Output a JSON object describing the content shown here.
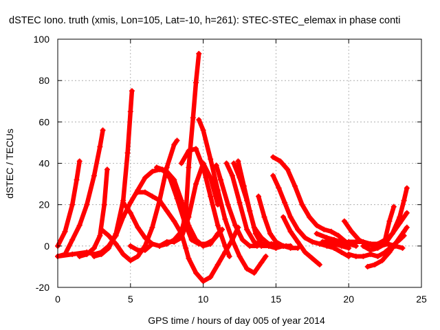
{
  "chart_data": {
    "type": "scatter",
    "title": "dSTEC Iono. truth (xmis, Lon=105, Lat=-10, h=261): STEC-STEC_elemax in phase conti",
    "xlabel": "GPS time / hours of day 005 of year 2014",
    "ylabel": "dSTEC  / TECUs",
    "xlim": [
      0,
      25
    ],
    "ylim": [
      -20,
      100
    ],
    "x_ticks": [
      0,
      5,
      10,
      15,
      20,
      25
    ],
    "y_ticks": [
      -20,
      0,
      20,
      40,
      60,
      80,
      100
    ],
    "grid": true,
    "marker": "+",
    "series_color": "#ff0000",
    "series": [
      {
        "points": [
          [
            0.0,
            0
          ],
          [
            0.5,
            7
          ],
          [
            1.0,
            20
          ],
          [
            1.3,
            32
          ],
          [
            1.5,
            41
          ]
        ]
      },
      {
        "points": [
          [
            0.0,
            -5
          ],
          [
            0.5,
            -4
          ],
          [
            1.0,
            3
          ],
          [
            1.5,
            10
          ],
          [
            2.0,
            20
          ],
          [
            2.5,
            34
          ],
          [
            2.9,
            48
          ],
          [
            3.1,
            56
          ]
        ]
      },
      {
        "points": [
          [
            1.5,
            -5
          ],
          [
            2.0,
            -4
          ],
          [
            2.5,
            -1
          ],
          [
            2.9,
            5
          ],
          [
            3.2,
            20
          ],
          [
            3.4,
            37
          ]
        ]
      },
      {
        "points": [
          [
            2.5,
            -5
          ],
          [
            3.0,
            -4
          ],
          [
            3.5,
            -1
          ],
          [
            4.0,
            6
          ],
          [
            4.5,
            22
          ],
          [
            4.8,
            45
          ],
          [
            5.0,
            65
          ],
          [
            5.1,
            75
          ]
        ]
      },
      {
        "points": [
          [
            0.0,
            -5
          ],
          [
            1.0,
            -4
          ],
          [
            2.0,
            -3
          ],
          [
            2.5,
            -4
          ],
          [
            3.0,
            -3
          ],
          [
            3.5,
            0
          ],
          [
            4.0,
            5
          ],
          [
            4.5,
            14
          ],
          [
            5.0,
            21
          ],
          [
            5.5,
            27
          ],
          [
            6.0,
            33
          ],
          [
            6.5,
            36
          ],
          [
            7.0,
            37
          ],
          [
            7.5,
            36
          ],
          [
            8.0,
            32
          ],
          [
            8.5,
            22
          ],
          [
            9.0,
            10
          ],
          [
            9.5,
            3
          ],
          [
            10.0,
            0
          ],
          [
            10.5,
            1
          ],
          [
            11.0,
            6
          ],
          [
            11.3,
            8
          ]
        ]
      },
      {
        "points": [
          [
            3.0,
            8
          ],
          [
            3.5,
            5
          ],
          [
            4.0,
            1
          ],
          [
            4.5,
            -4
          ],
          [
            5.0,
            -7
          ],
          [
            5.5,
            -5
          ],
          [
            6.0,
            0
          ],
          [
            6.5,
            9
          ],
          [
            7.0,
            22
          ],
          [
            7.5,
            38
          ],
          [
            8.0,
            49
          ],
          [
            8.2,
            51
          ]
        ]
      },
      {
        "points": [
          [
            4.5,
            21
          ],
          [
            5.0,
            16
          ],
          [
            5.5,
            9
          ],
          [
            6.0,
            4
          ],
          [
            6.5,
            1
          ],
          [
            7.0,
            0
          ],
          [
            7.5,
            1
          ],
          [
            8.0,
            3
          ],
          [
            8.5,
            7
          ],
          [
            8.8,
            15
          ],
          [
            9.0,
            38
          ],
          [
            9.3,
            62
          ],
          [
            9.5,
            79
          ],
          [
            9.7,
            93
          ]
        ]
      },
      {
        "points": [
          [
            5.5,
            26
          ],
          [
            6.0,
            26
          ],
          [
            6.5,
            24
          ],
          [
            7.0,
            22
          ],
          [
            7.5,
            17
          ],
          [
            8.0,
            12
          ],
          [
            8.5,
            6
          ],
          [
            8.8,
            -1
          ],
          [
            9.0,
            -6
          ],
          [
            9.5,
            -13
          ],
          [
            10.0,
            -17
          ],
          [
            10.5,
            -15
          ],
          [
            11.0,
            -9
          ],
          [
            11.5,
            -3
          ],
          [
            12.0,
            3
          ],
          [
            12.4,
            9
          ]
        ]
      },
      {
        "points": [
          [
            6.8,
            38
          ],
          [
            7.2,
            37
          ],
          [
            7.7,
            33
          ],
          [
            8.2,
            23
          ],
          [
            8.7,
            12
          ],
          [
            9.2,
            3
          ],
          [
            9.7,
            1
          ],
          [
            10.2,
            1
          ],
          [
            10.7,
            3
          ],
          [
            11.2,
            7
          ]
        ]
      },
      {
        "points": [
          [
            5.0,
            0
          ],
          [
            5.5,
            -2
          ],
          [
            6.0,
            -2
          ],
          [
            6.5,
            1
          ],
          [
            7.0,
            0
          ],
          [
            7.5,
            2
          ],
          [
            8.0,
            2
          ],
          [
            8.5,
            4
          ],
          [
            9.0,
            14
          ],
          [
            9.5,
            30
          ],
          [
            10.0,
            40
          ],
          [
            10.5,
            33
          ],
          [
            11.0,
            20
          ]
        ]
      },
      {
        "points": [
          [
            8.5,
            40
          ],
          [
            9.0,
            46
          ],
          [
            9.5,
            47
          ],
          [
            10.0,
            38
          ],
          [
            10.5,
            24
          ],
          [
            11.0,
            10
          ],
          [
            11.5,
            0
          ],
          [
            11.8,
            -5
          ]
        ]
      },
      {
        "points": [
          [
            9.7,
            61
          ],
          [
            10.0,
            56
          ],
          [
            10.5,
            42
          ],
          [
            11.0,
            27
          ],
          [
            11.5,
            13
          ],
          [
            12.0,
            3
          ],
          [
            12.5,
            -5
          ],
          [
            13.0,
            -11
          ],
          [
            13.5,
            -13
          ],
          [
            14.0,
            -8
          ],
          [
            14.3,
            -5
          ]
        ]
      },
      {
        "points": [
          [
            10.9,
            39
          ],
          [
            11.2,
            32
          ],
          [
            11.7,
            20
          ],
          [
            12.2,
            10
          ],
          [
            12.7,
            3
          ],
          [
            13.2,
            0
          ],
          [
            13.7,
            0
          ],
          [
            14.2,
            1
          ],
          [
            14.7,
            1
          ],
          [
            15.2,
            0
          ],
          [
            15.7,
            0
          ]
        ]
      },
      {
        "points": [
          [
            11.6,
            40
          ],
          [
            12.0,
            34
          ],
          [
            12.5,
            21
          ],
          [
            13.0,
            8
          ],
          [
            13.5,
            2
          ],
          [
            14.0,
            0
          ],
          [
            14.5,
            0
          ],
          [
            15.0,
            -1
          ],
          [
            15.5,
            0
          ],
          [
            16.0,
            0
          ]
        ]
      },
      {
        "points": [
          [
            12.1,
            40
          ],
          [
            12.5,
            33
          ],
          [
            13.0,
            22
          ],
          [
            13.5,
            9
          ],
          [
            14.0,
            4
          ],
          [
            14.5,
            1
          ],
          [
            15.0,
            0
          ],
          [
            15.5,
            0
          ]
        ]
      },
      {
        "points": [
          [
            12.4,
            41
          ],
          [
            12.8,
            29
          ],
          [
            13.2,
            17
          ],
          [
            13.6,
            6
          ],
          [
            14.0,
            1
          ],
          [
            14.5,
            0
          ],
          [
            15.0,
            -1
          ]
        ]
      },
      {
        "points": [
          [
            13.8,
            24
          ],
          [
            14.2,
            14
          ],
          [
            14.6,
            6
          ],
          [
            15.0,
            2
          ],
          [
            15.5,
            0
          ],
          [
            16.0,
            -1
          ],
          [
            16.5,
            -1
          ]
        ]
      },
      {
        "points": [
          [
            14.8,
            43
          ],
          [
            15.3,
            41
          ],
          [
            15.8,
            37
          ],
          [
            16.3,
            29
          ],
          [
            16.8,
            20
          ],
          [
            17.3,
            14
          ],
          [
            17.8,
            10
          ],
          [
            18.3,
            8
          ],
          [
            18.8,
            7
          ],
          [
            19.3,
            5
          ],
          [
            19.8,
            2
          ],
          [
            20.3,
            1
          ]
        ]
      },
      {
        "points": [
          [
            14.8,
            34
          ],
          [
            15.2,
            28
          ],
          [
            15.6,
            21
          ],
          [
            16.0,
            14
          ],
          [
            16.5,
            8
          ],
          [
            17.0,
            4
          ],
          [
            17.5,
            2
          ],
          [
            18.0,
            1
          ],
          [
            18.5,
            0
          ],
          [
            19.0,
            -1
          ],
          [
            19.5,
            -3
          ],
          [
            20.0,
            -5
          ]
        ]
      },
      {
        "points": [
          [
            15.5,
            14
          ],
          [
            16.0,
            7
          ],
          [
            16.5,
            2
          ],
          [
            17.0,
            -3
          ],
          [
            17.5,
            -6
          ],
          [
            18.0,
            -9
          ]
        ]
      },
      {
        "points": [
          [
            17.8,
            6
          ],
          [
            18.5,
            4
          ],
          [
            19.0,
            3
          ],
          [
            19.5,
            2
          ],
          [
            20.0,
            1
          ],
          [
            20.5,
            0
          ]
        ]
      },
      {
        "points": [
          [
            18.2,
            2
          ],
          [
            18.5,
            2
          ],
          [
            19.0,
            1
          ],
          [
            19.5,
            0
          ],
          [
            20.0,
            -1
          ]
        ]
      },
      {
        "points": [
          [
            19.7,
            12
          ],
          [
            20.2,
            7
          ],
          [
            20.7,
            3
          ],
          [
            21.2,
            1
          ],
          [
            21.7,
            0
          ],
          [
            22.2,
            0
          ],
          [
            22.7,
            1
          ],
          [
            23.2,
            0
          ],
          [
            23.7,
            -1
          ]
        ]
      },
      {
        "points": [
          [
            20.0,
            -4
          ],
          [
            20.5,
            -5
          ],
          [
            21.0,
            -5
          ],
          [
            21.5,
            -4
          ],
          [
            22.0,
            -5
          ],
          [
            22.5,
            -3
          ],
          [
            23.0,
            0
          ],
          [
            23.5,
            3
          ],
          [
            23.8,
            5
          ]
        ]
      },
      {
        "points": [
          [
            21.3,
            -10
          ],
          [
            21.8,
            -9
          ],
          [
            22.3,
            -7
          ],
          [
            22.8,
            -3
          ],
          [
            23.3,
            2
          ],
          [
            23.8,
            7
          ],
          [
            24.0,
            9
          ]
        ]
      },
      {
        "points": [
          [
            20.0,
            2
          ],
          [
            20.5,
            2
          ],
          [
            21.0,
            2
          ],
          [
            21.5,
            1
          ],
          [
            22.0,
            1
          ],
          [
            22.5,
            3
          ],
          [
            22.8,
            12
          ],
          [
            23.1,
            19
          ]
        ]
      },
      {
        "points": [
          [
            21.0,
            0
          ],
          [
            21.5,
            -2
          ],
          [
            22.0,
            -1
          ],
          [
            22.5,
            1
          ],
          [
            23.0,
            6
          ],
          [
            23.5,
            14
          ],
          [
            23.8,
            22
          ],
          [
            24.0,
            28
          ]
        ]
      },
      {
        "points": [
          [
            22.5,
            2
          ],
          [
            23.0,
            6
          ],
          [
            23.5,
            11
          ],
          [
            24.0,
            16
          ]
        ]
      }
    ]
  }
}
